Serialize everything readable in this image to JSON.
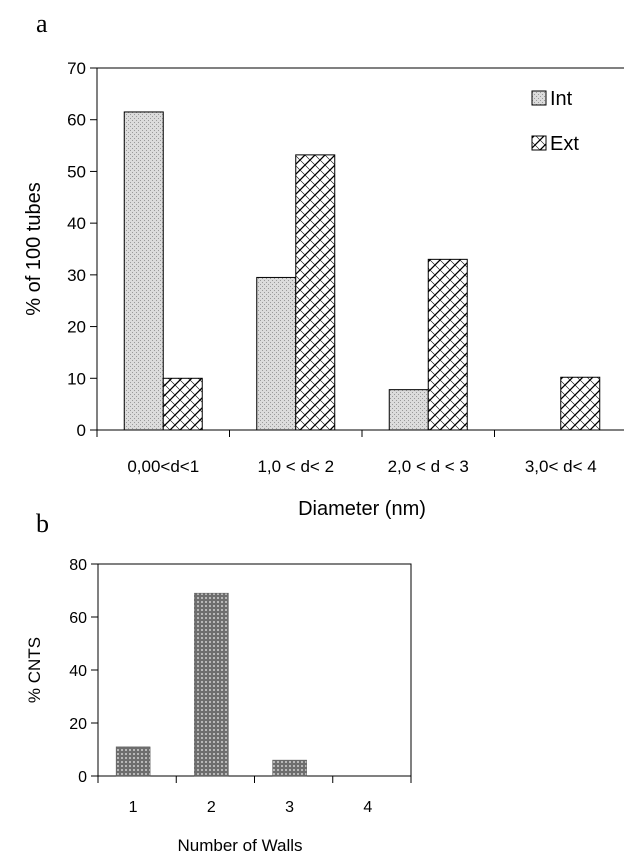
{
  "panel_a_label": "a",
  "panel_b_label": "b",
  "chart_data": [
    {
      "type": "bar",
      "panel": "a",
      "categories": [
        "0,00<d<1",
        "1,0 < d< 2",
        "2,0 < d < 3",
        "3,0< d< 4"
      ],
      "series": [
        {
          "name": "Int",
          "values": [
            61.5,
            29.5,
            7.8,
            0
          ]
        },
        {
          "name": "Ext",
          "values": [
            10,
            53.2,
            33,
            10.2
          ]
        }
      ],
      "xlabel": "Diameter (nm)",
      "ylabel": "% of 100 tubes",
      "ylim": [
        0,
        70
      ],
      "yticks": [
        0,
        10,
        20,
        30,
        40,
        50,
        60,
        70
      ],
      "grid": false,
      "legend_position": "top-right"
    },
    {
      "type": "bar",
      "panel": "b",
      "categories": [
        "1",
        "2",
        "3",
        "4"
      ],
      "values": [
        11,
        69,
        6,
        0
      ],
      "xlabel": "Number of Walls",
      "ylabel": "% CNTS",
      "ylim": [
        0,
        80
      ],
      "yticks": [
        0,
        20,
        40,
        60,
        80
      ],
      "grid": false
    }
  ]
}
